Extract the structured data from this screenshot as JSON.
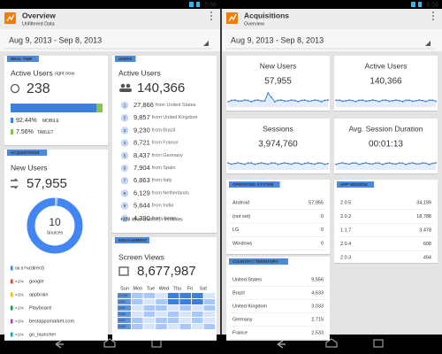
{
  "left": {
    "status_time": "5:56",
    "title": "Overview",
    "subtitle": "Unfiltered Data",
    "date_range": "Aug 9, 2013 - Sep 8, 2013",
    "realtime": {
      "tag": "REAL-TIME",
      "label": "Active Users",
      "sublabel": "right now",
      "value": 238,
      "mobile_pct": "92.44%",
      "mobile_label": "MOBILE",
      "tablet_pct": "7.56%",
      "tablet_label": "TABLET"
    },
    "acquisitions": {
      "tag": "ACQUISITIONS",
      "label": "New Users",
      "value": "57,955",
      "donut_value": 10,
      "donut_label": "Sources",
      "sources": [
        {
          "pct": "99.67%",
          "name": "(direct)"
        },
        {
          "pct": "<1%",
          "name": "google"
        },
        {
          "pct": "<1%",
          "name": "appbrain"
        },
        {
          "pct": "<1%",
          "name": "Playboard"
        },
        {
          "pct": "<1%",
          "name": "bestappsmarket.com"
        },
        {
          "pct": "<1%",
          "name": "go_launcher"
        }
      ]
    },
    "users": {
      "tag": "USERS",
      "label": "Active Users",
      "value": "140,366",
      "countries": [
        {
          "rank": 1,
          "value": "27,866",
          "text": "from United States"
        },
        {
          "rank": 2,
          "value": "9,857",
          "text": "from United Kingdom"
        },
        {
          "rank": 3,
          "value": "9,230",
          "text": "from Brazil"
        },
        {
          "rank": 4,
          "value": "8,721",
          "text": "from France"
        },
        {
          "rank": 5,
          "value": "8,437",
          "text": "from Germany"
        },
        {
          "rank": 6,
          "value": "7,904",
          "text": "from Spain"
        },
        {
          "rank": 7,
          "value": "6,863",
          "text": "from Italy"
        },
        {
          "rank": 8,
          "value": "6,129",
          "text": "from Netherlands"
        },
        {
          "rank": 9,
          "value": "5,644",
          "text": "from India"
        },
        {
          "rank": 10,
          "value": "4,390",
          "text": "from Japan"
        }
      ],
      "more": "+138 other countries / territories"
    },
    "engagement": {
      "tag": "ENGAGEMENT",
      "label": "Screen Views",
      "value": "8,677,987",
      "days": [
        "Sun",
        "Mon",
        "Tue",
        "Wed",
        "Thu",
        "Fri",
        "Sat"
      ],
      "hours": [
        "12AM",
        "1AM",
        "2AM",
        "3AM",
        "4AM",
        "5AM"
      ]
    }
  },
  "right": {
    "status_time": "5:56",
    "title": "Acquisitions",
    "subtitle": "Overview",
    "date_range": "Aug 9, 2013 - Sep 8, 2013",
    "metrics": [
      {
        "label": "New Users",
        "value": "57,955"
      },
      {
        "label": "Active Users",
        "value": "140,366"
      },
      {
        "label": "Sessions",
        "value": "3,974,760"
      },
      {
        "label": "Avg. Session Duration",
        "value": "00:01:13"
      }
    ],
    "os": {
      "tag": "OPERATING SYSTEM",
      "rows": [
        {
          "name": "Android",
          "value": "57,955"
        },
        {
          "name": "(not set)",
          "value": 0
        },
        {
          "name": "LG",
          "value": 0
        },
        {
          "name": "Windows",
          "value": 0
        }
      ]
    },
    "country": {
      "tag": "COUNTRY / TERRITORY",
      "rows": [
        {
          "name": "United States",
          "value": "9,556"
        },
        {
          "name": "Brazil",
          "value": "4,633"
        },
        {
          "name": "United Kingdom",
          "value": "3,033"
        },
        {
          "name": "Germany",
          "value": "2,715"
        },
        {
          "name": "France",
          "value": "2,533"
        }
      ]
    },
    "app_version": {
      "tag": "APP VERSION",
      "rows": [
        {
          "name": "2.0.5",
          "value": "34,199"
        },
        {
          "name": "2.0.2",
          "value": "18,788"
        },
        {
          "name": "1.1.7",
          "value": "3,478"
        },
        {
          "name": "2.0.4",
          "value": 608
        },
        {
          "name": "2.0.3",
          "value": 494
        }
      ]
    }
  }
}
